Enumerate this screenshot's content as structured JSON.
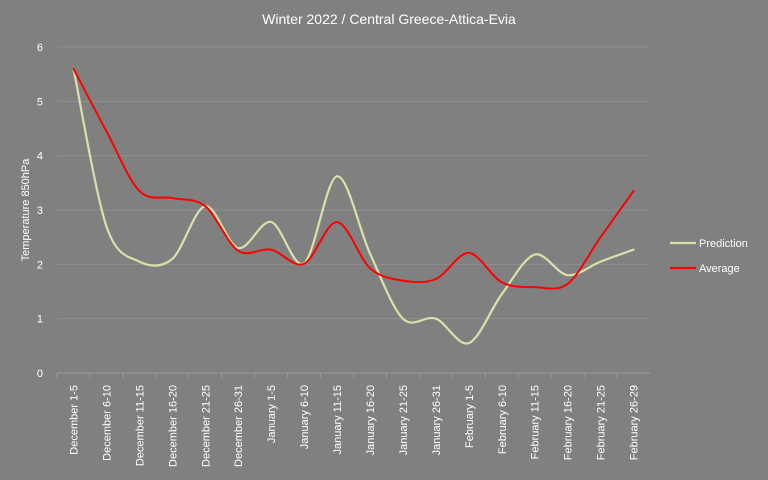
{
  "chart_data": {
    "type": "line",
    "title": "Winter 2022 / Central Greece-Attica-Evia",
    "ylabel": "Temperature 850hPa",
    "xlabel": "",
    "ylim": [
      0,
      6
    ],
    "yticks": [
      "0",
      "1",
      "2",
      "3",
      "4",
      "5",
      "6"
    ],
    "grid": true,
    "legend_position": "right",
    "categories": [
      "December 1-5",
      "December 6-10",
      "December 11-15",
      "December 16-20",
      "December 21-25",
      "December 26-31",
      "January 1-5",
      "January 6-10",
      "January 11-15",
      "January 16-20",
      "January 21-25",
      "January 26-31",
      "February 1-5",
      "February 6-10",
      "February 11-15",
      "February 16-20",
      "February 21-25",
      "February 26-29"
    ],
    "series": [
      {
        "name": "Prediction",
        "color": "#d9e0a8",
        "values": [
          5.6,
          2.7,
          2.05,
          2.1,
          3.07,
          2.3,
          2.78,
          2.02,
          3.62,
          2.2,
          1.0,
          1.0,
          0.55,
          1.45,
          2.18,
          1.8,
          2.05,
          2.27
        ]
      },
      {
        "name": "Average",
        "color": "#ff0000",
        "values": [
          5.6,
          4.45,
          3.35,
          3.22,
          3.07,
          2.25,
          2.27,
          2.01,
          2.78,
          1.93,
          1.7,
          1.73,
          2.21,
          1.67,
          1.58,
          1.64,
          2.5,
          3.35
        ]
      }
    ]
  }
}
